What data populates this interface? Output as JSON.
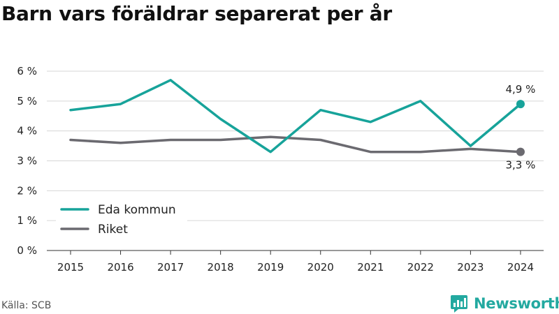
{
  "title": "Barn vars föräldrar separerat per år",
  "source": "Källa: SCB",
  "brand": {
    "name": "Newsworthy",
    "icon": "newsworthy-logo-icon"
  },
  "colors": {
    "eda": "#17a39a",
    "riket": "#6b6a70",
    "grid": "#d6d6d6",
    "axis": "#333333"
  },
  "chart_data": {
    "type": "line",
    "title": "Barn vars föräldrar separerat per år",
    "xlabel": "",
    "ylabel": "",
    "x": [
      2015,
      2016,
      2017,
      2018,
      2019,
      2020,
      2021,
      2022,
      2023,
      2024
    ],
    "ylim": [
      0,
      6
    ],
    "yticks": [
      0,
      1,
      2,
      3,
      4,
      5,
      6
    ],
    "ytick_labels": [
      "0 %",
      "1 %",
      "2 %",
      "3 %",
      "4 %",
      "5 %",
      "6 %"
    ],
    "xtick_labels": [
      "2015",
      "2016",
      "2017",
      "2018",
      "2019",
      "2020",
      "2021",
      "2022",
      "2023",
      "2024"
    ],
    "grid": "horizontal",
    "legend": "bottom-left",
    "series": [
      {
        "name": "Eda kommun",
        "values": [
          4.7,
          4.9,
          5.7,
          4.4,
          3.3,
          4.7,
          4.3,
          5.0,
          3.5,
          4.9
        ],
        "end_label": "4,9 %"
      },
      {
        "name": "Riket",
        "values": [
          3.7,
          3.6,
          3.7,
          3.7,
          3.8,
          3.7,
          3.3,
          3.3,
          3.4,
          3.3
        ],
        "end_label": "3,3 %"
      }
    ]
  }
}
